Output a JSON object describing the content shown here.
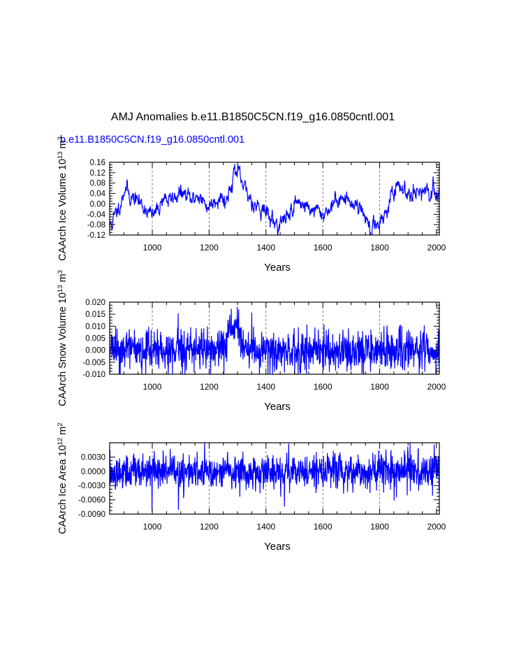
{
  "figure": {
    "title": "AMJ Anomalies b.e11.B1850C5CN.f19_g16.0850cntl.001",
    "case_label": "b.e11.B1850C5CN.f19_g16.0850cntl.001",
    "line_color": "#0000ff"
  },
  "chart_data": [
    {
      "type": "line",
      "name": "ice-volume",
      "ylabel_main": "CAArch Ice Volume 10",
      "ylabel_exp": "13",
      "ylabel_unit": " m",
      "ylabel_unit_exp": "3",
      "xlabel": "Years",
      "xlim": [
        850,
        2010
      ],
      "ylim": [
        -0.12,
        0.16
      ],
      "x_ticks": [
        1000,
        1200,
        1400,
        1600,
        1800,
        2000
      ],
      "x_tick_labels": [
        "1000",
        "1200",
        "1400",
        "1600",
        "1800",
        "2000"
      ],
      "y_ticks": [
        -0.12,
        -0.08,
        -0.04,
        0.0,
        0.04,
        0.08,
        0.12,
        0.16
      ],
      "y_tick_labels": [
        "-0.12",
        "-0.08",
        "-0.04",
        "0.00",
        "0.04",
        "0.08",
        "0.12",
        "0.16"
      ],
      "gridlines_x": [
        1000,
        1200,
        1400,
        1600,
        1800
      ],
      "series_anchors": [
        [
          850,
          -0.085
        ],
        [
          860,
          -0.07
        ],
        [
          875,
          -0.03
        ],
        [
          890,
          0.01
        ],
        [
          905,
          0.07
        ],
        [
          920,
          0.03
        ],
        [
          940,
          0.02
        ],
        [
          960,
          0.0
        ],
        [
          980,
          -0.02
        ],
        [
          1000,
          -0.05
        ],
        [
          1020,
          -0.02
        ],
        [
          1040,
          0.03
        ],
        [
          1060,
          0.01
        ],
        [
          1080,
          0.03
        ],
        [
          1100,
          0.04
        ],
        [
          1120,
          0.03
        ],
        [
          1140,
          0.01
        ],
        [
          1160,
          0.04
        ],
        [
          1180,
          0.0
        ],
        [
          1200,
          -0.01
        ],
        [
          1220,
          0.02
        ],
        [
          1240,
          0.03
        ],
        [
          1260,
          0.01
        ],
        [
          1275,
          0.07
        ],
        [
          1290,
          0.13
        ],
        [
          1300,
          0.12
        ],
        [
          1310,
          0.09
        ],
        [
          1320,
          0.06
        ],
        [
          1340,
          0.03
        ],
        [
          1360,
          0.0
        ],
        [
          1380,
          -0.01
        ],
        [
          1400,
          -0.03
        ],
        [
          1420,
          -0.06
        ],
        [
          1440,
          -0.08
        ],
        [
          1460,
          -0.07
        ],
        [
          1480,
          -0.04
        ],
        [
          1500,
          0.0
        ],
        [
          1520,
          0.01
        ],
        [
          1540,
          -0.01
        ],
        [
          1560,
          -0.02
        ],
        [
          1580,
          -0.03
        ],
        [
          1600,
          -0.04
        ],
        [
          1620,
          -0.02
        ],
        [
          1640,
          0.0
        ],
        [
          1660,
          0.03
        ],
        [
          1680,
          0.01
        ],
        [
          1700,
          0.01
        ],
        [
          1720,
          0.0
        ],
        [
          1740,
          -0.03
        ],
        [
          1760,
          -0.07
        ],
        [
          1770,
          -0.12
        ],
        [
          1780,
          -0.09
        ],
        [
          1800,
          -0.06
        ],
        [
          1820,
          -0.04
        ],
        [
          1840,
          0.03
        ],
        [
          1860,
          0.05
        ],
        [
          1880,
          0.06
        ],
        [
          1900,
          0.04
        ],
        [
          1920,
          0.06
        ],
        [
          1940,
          0.05
        ],
        [
          1960,
          0.03
        ],
        [
          1980,
          0.04
        ],
        [
          2000,
          0.05
        ],
        [
          2010,
          0.03
        ]
      ],
      "noise": 0.012,
      "sampling": "ar",
      "seed": 11
    },
    {
      "type": "line",
      "name": "snow-volume",
      "ylabel_main": "CAArch Snow Volume 10",
      "ylabel_exp": "13",
      "ylabel_unit": " m",
      "ylabel_unit_exp": "3",
      "xlabel": "Years",
      "xlim": [
        850,
        2010
      ],
      "ylim": [
        -0.01,
        0.02
      ],
      "x_ticks": [
        1000,
        1200,
        1400,
        1600,
        1800,
        2000
      ],
      "x_tick_labels": [
        "1000",
        "1200",
        "1400",
        "1600",
        "1800",
        "2000"
      ],
      "y_ticks": [
        -0.01,
        -0.005,
        0.0,
        0.005,
        0.01,
        0.015,
        0.02
      ],
      "y_tick_labels": [
        "-0.010",
        "-0.005",
        "0.000",
        "0.005",
        "0.010",
        "0.015",
        "0.020"
      ],
      "gridlines_x": [
        1000,
        1200,
        1400,
        1600,
        1800
      ],
      "series_anchors": [
        [
          850,
          0.0
        ],
        [
          1000,
          0.0
        ],
        [
          1200,
          0.0
        ],
        [
          1250,
          0.002
        ],
        [
          1280,
          0.008
        ],
        [
          1295,
          0.01
        ],
        [
          1310,
          0.003
        ],
        [
          1340,
          0.0
        ],
        [
          1500,
          0.0
        ],
        [
          1700,
          0.0
        ],
        [
          2010,
          0.0
        ]
      ],
      "noise": 0.004,
      "sampling": "white",
      "seed": 23
    },
    {
      "type": "line",
      "name": "ice-area",
      "ylabel_main": "CAArch Ice Area 10",
      "ylabel_exp": "12",
      "ylabel_unit": " m",
      "ylabel_unit_exp": "2",
      "xlabel": "Years",
      "xlim": [
        850,
        2010
      ],
      "ylim": [
        -0.009,
        0.006
      ],
      "x_ticks": [
        1000,
        1200,
        1400,
        1600,
        1800,
        2000
      ],
      "x_tick_labels": [
        "1000",
        "1200",
        "1400",
        "1600",
        "1800",
        "2000"
      ],
      "y_ticks": [
        -0.009,
        -0.006,
        -0.003,
        0.0,
        0.003
      ],
      "y_tick_labels": [
        "-0.0090",
        "-0.0060",
        "-0.0030",
        "0.0000",
        "0.0030"
      ],
      "gridlines_x": [
        1000,
        1200,
        1400,
        1600,
        1800
      ],
      "series_anchors": [
        [
          850,
          0.0
        ],
        [
          2010,
          0.0
        ]
      ],
      "noise": 0.0018,
      "sampling": "white",
      "seed": 37
    }
  ]
}
